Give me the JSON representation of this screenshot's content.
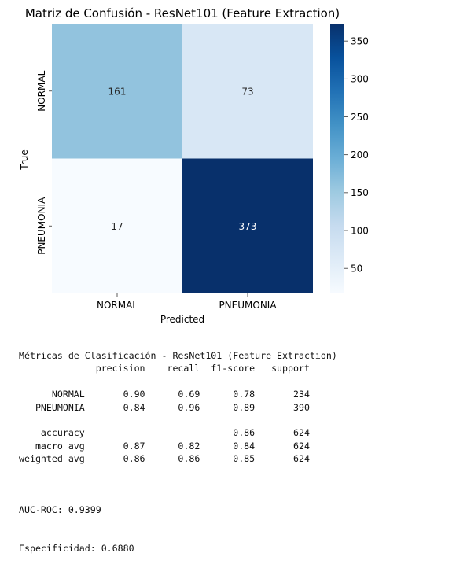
{
  "chart_data": {
    "type": "heatmap",
    "title": "Matriz de Confusión - ResNet101 (Feature Extraction)",
    "xlabel": "Predicted",
    "ylabel": "True",
    "x_categories": [
      "NORMAL",
      "PNEUMONIA"
    ],
    "y_categories": [
      "NORMAL",
      "PNEUMONIA"
    ],
    "values": [
      [
        161,
        73
      ],
      [
        17,
        373
      ]
    ],
    "colormap": "Blues",
    "color_range": [
      17,
      373
    ],
    "colorbar_ticks": [
      50,
      100,
      150,
      200,
      250,
      300,
      350
    ],
    "cell_text_colors": [
      [
        "#262626",
        "#262626"
      ],
      [
        "#262626",
        "#ffffff"
      ]
    ]
  },
  "report": {
    "lines": [
      "Métricas de Clasificación - ResNet101 (Feature Extraction)",
      "              precision    recall  f1-score   support",
      "",
      "      NORMAL       0.90      0.69      0.78       234",
      "   PNEUMONIA       0.84      0.96      0.89       390",
      "",
      "    accuracy                           0.86       624",
      "   macro avg       0.87      0.82      0.84       624",
      "weighted avg       0.86      0.86      0.85       624"
    ]
  },
  "auc_roc": "AUC-ROC: 0.9399",
  "specificity": "Especificidad: 0.6880"
}
